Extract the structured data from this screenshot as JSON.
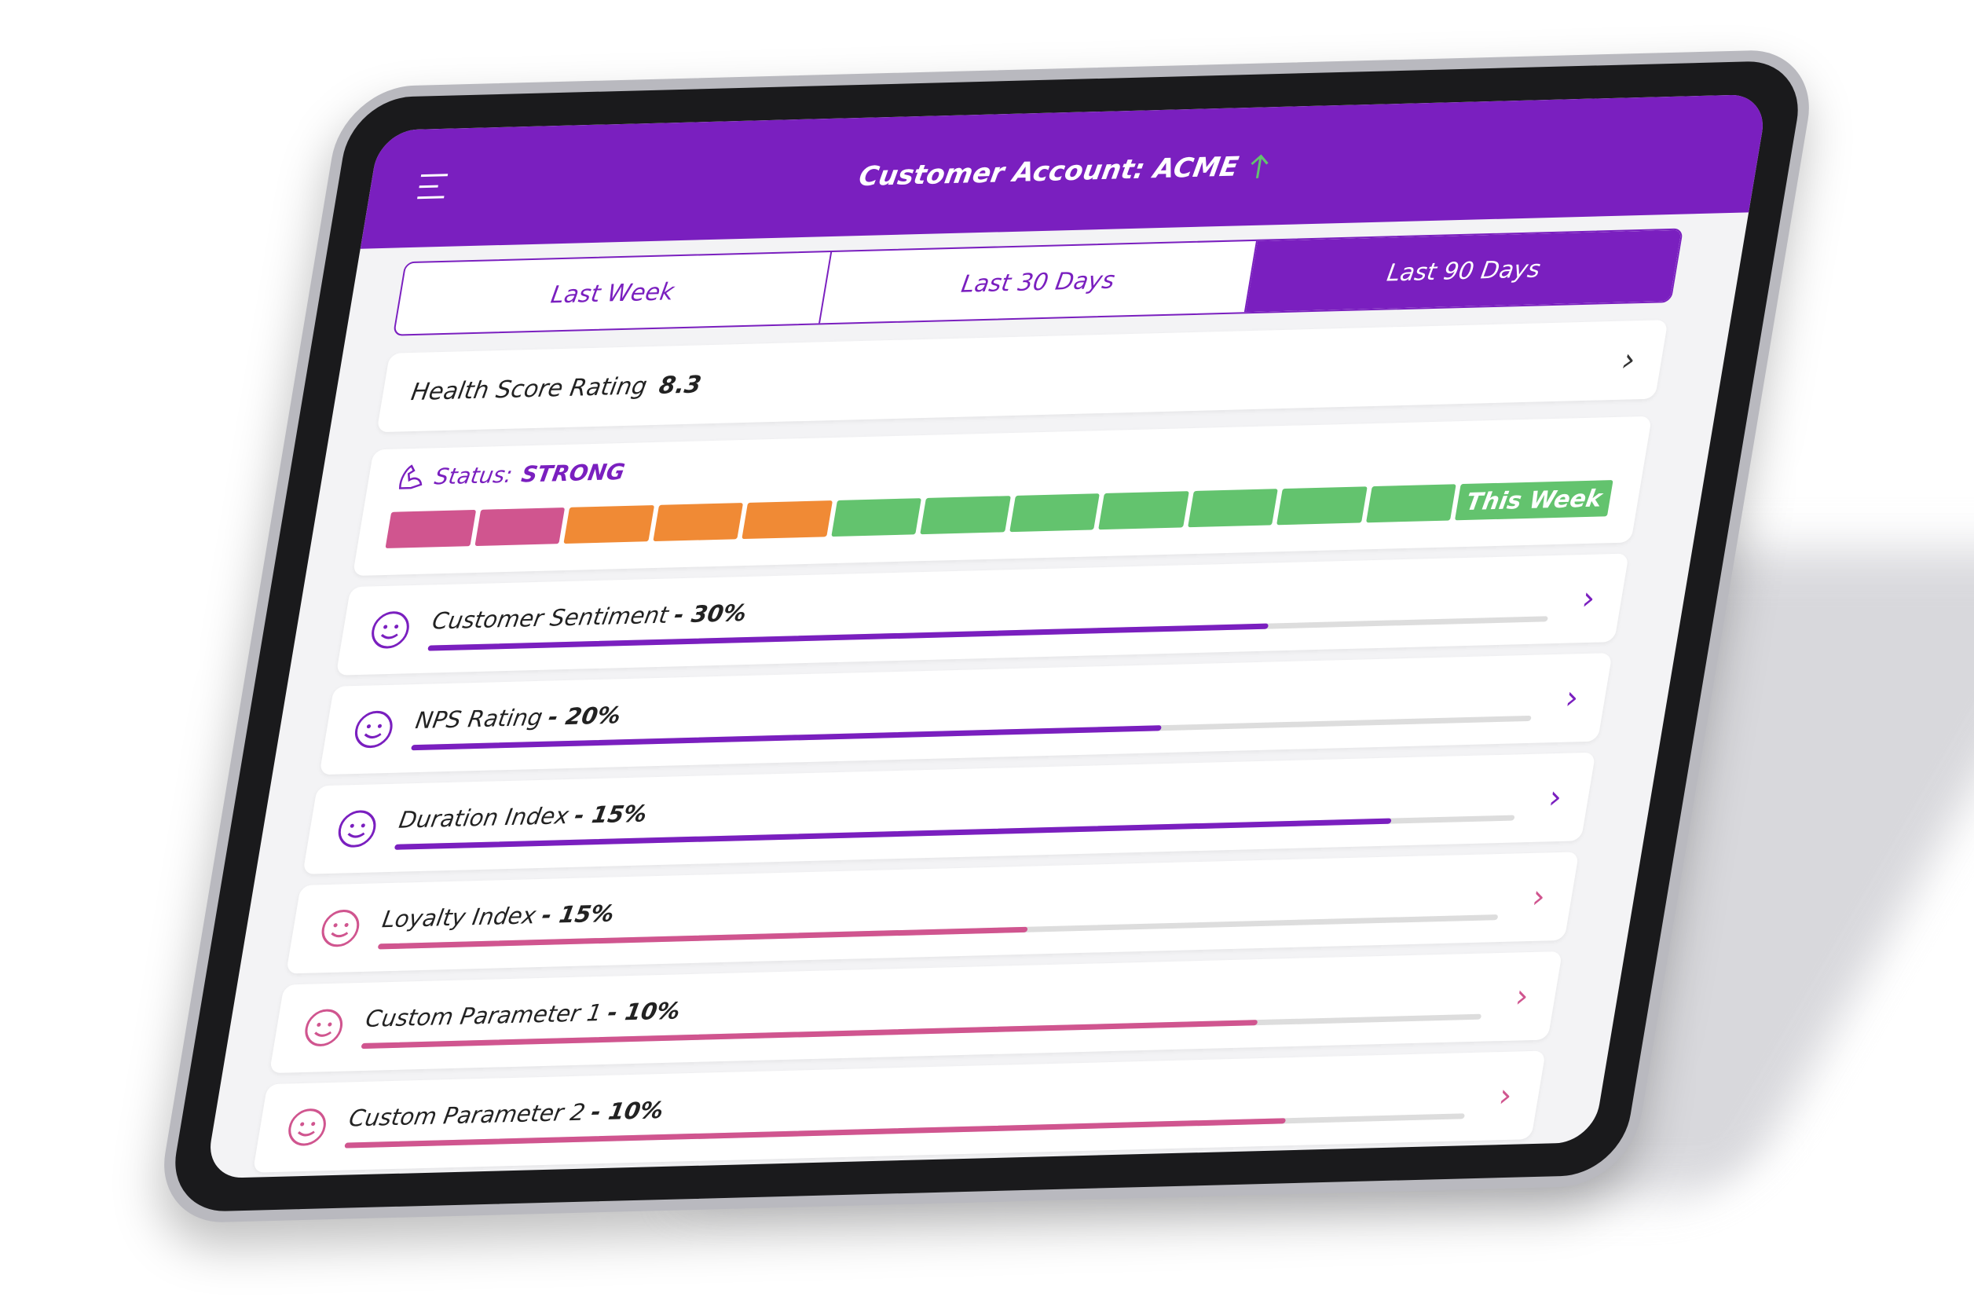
{
  "header": {
    "title": "Customer Account: ACME"
  },
  "tabs": {
    "items": [
      "Last Week",
      "Last 30 Days",
      "Last 90 Days"
    ],
    "active": 2
  },
  "health": {
    "label": "Health Score Rating",
    "value": "8.3"
  },
  "status": {
    "label": "Status:",
    "value": "STRONG",
    "segments": [
      "#d0558f",
      "#d0558f",
      "#f08a35",
      "#f08a35",
      "#f08a35",
      "#63c36e",
      "#63c36e",
      "#63c36e",
      "#63c36e",
      "#63c36e",
      "#63c36e",
      "#63c36e"
    ],
    "current_label": "This Week",
    "current_color": "#63c36e"
  },
  "metrics": [
    {
      "name": "Customer Sentiment",
      "weight": "- 30%",
      "progress": 75,
      "color": "#7a1fbf"
    },
    {
      "name": "NPS Rating",
      "weight": "- 20%",
      "progress": 67,
      "color": "#7a1fbf"
    },
    {
      "name": "Duration Index",
      "weight": "- 15%",
      "progress": 89,
      "color": "#7a1fbf"
    },
    {
      "name": "Loyalty Index",
      "weight": "- 15%",
      "progress": 58,
      "color": "#d0558f"
    },
    {
      "name": "Custom Parameter 1",
      "weight": "- 10%",
      "progress": 80,
      "color": "#d0558f"
    },
    {
      "name": "Custom Parameter 2",
      "weight": "- 10%",
      "progress": 84,
      "color": "#d0558f"
    }
  ]
}
